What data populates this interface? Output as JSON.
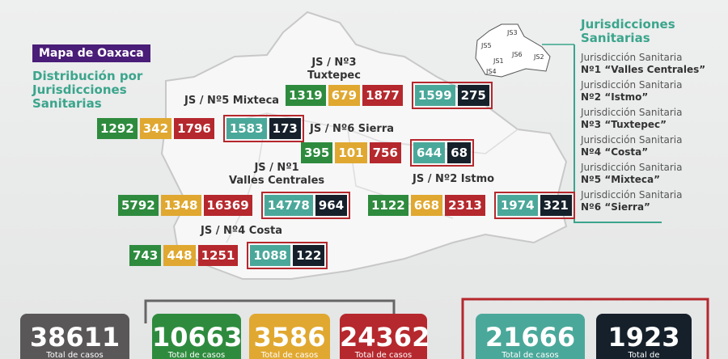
{
  "header": {
    "badge": "Mapa de Oaxaca",
    "subtitle": [
      "Distribución por",
      "Jurisdicciones",
      "Sanitarias"
    ]
  },
  "legend": {
    "title": [
      "Jurisdicciones",
      "Sanitarias"
    ],
    "items": [
      [
        "Jurisdicción Sanitaria",
        "Nº1 “Valles Centrales”"
      ],
      [
        "Jurisdicción Sanitaria",
        "Nº2 “Istmo”"
      ],
      [
        "Jurisdicción Sanitaria",
        "Nº3 “Tuxtepec”"
      ],
      [
        "Jurisdicción Sanitaria",
        "Nº4 “Costa”"
      ],
      [
        "Jurisdicción Sanitaria",
        "Nº5 “Mixteca”"
      ],
      [
        "Jurisdicción Sanitaria",
        "Nº6 “Sierra”"
      ]
    ]
  },
  "mini_map": {
    "labels": [
      "JS5",
      "JS3",
      "JS6",
      "JS1",
      "JS2",
      "JS4"
    ]
  },
  "regions": [
    {
      "label": [
        "JS / Nº3",
        "Tuxtepec"
      ],
      "values": [
        1319,
        679,
        1877,
        1599,
        275
      ]
    },
    {
      "label": [
        "JS / Nº5 Mixteca"
      ],
      "values": [
        1292,
        342,
        1796,
        1583,
        173
      ]
    },
    {
      "label": [
        "JS / Nº6 Sierra"
      ],
      "values": [
        395,
        101,
        756,
        644,
        68
      ]
    },
    {
      "label": [
        "JS / Nº1",
        "Valles Centrales"
      ],
      "values": [
        5792,
        1348,
        16369,
        14778,
        964
      ]
    },
    {
      "label": [
        "JS / Nº2 Istmo"
      ],
      "values": [
        1122,
        668,
        2313,
        1974,
        321
      ]
    },
    {
      "label": [
        "JS / Nº4 Costa"
      ],
      "values": [
        743,
        448,
        1251,
        1088,
        122
      ]
    }
  ],
  "totals": [
    {
      "value": 38611,
      "label": "Total de casos"
    },
    {
      "value": 10663,
      "label": "Total de casos"
    },
    {
      "value": 3586,
      "label": "Total de casos"
    },
    {
      "value": 24362,
      "label": "Total de casos"
    },
    {
      "value": 21666,
      "label": "Total de casos"
    },
    {
      "value": 1923,
      "label": "Total de"
    }
  ]
}
